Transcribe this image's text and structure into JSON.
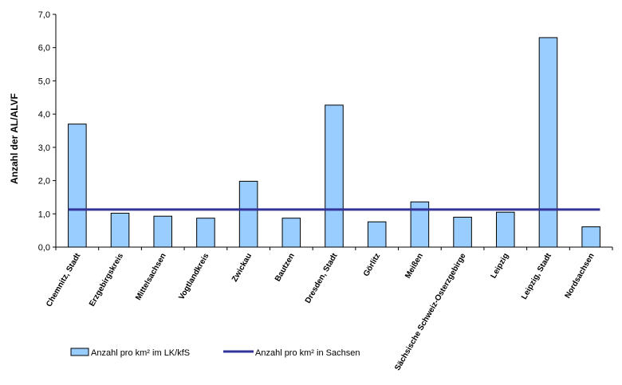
{
  "chart_data": {
    "type": "bar",
    "ylabel": "Anzahl der AL/ALVF",
    "ylim": [
      0,
      7
    ],
    "yticks": [
      "0,0",
      "1,0",
      "2,0",
      "3,0",
      "4,0",
      "5,0",
      "6,0",
      "7,0"
    ],
    "grid": false,
    "legend_position": "bottom",
    "categories": [
      "Chemnitz, Stadt",
      "Erzgebirgskreis",
      "Mittelsachsen",
      "Vogtlandkreis",
      "Zwickau",
      "Bautzen",
      "Dresden, Stadt",
      "Görlitz",
      "Meißen",
      "Sächsische Schweiz-Osterzgebirge",
      "Leipzig",
      "Leipzig, Stadt",
      "Nordsachsen"
    ],
    "series": [
      {
        "name": "Anzahl pro km² im LK/kfS",
        "type": "bar",
        "color": "#99ccff",
        "values": [
          3.7,
          1.02,
          0.93,
          0.87,
          1.98,
          0.87,
          4.27,
          0.76,
          1.36,
          0.9,
          1.05,
          6.3,
          0.61
        ]
      },
      {
        "name": "Anzahl pro km² in Sachsen",
        "type": "line",
        "color": "#333399",
        "value": 1.13
      }
    ]
  }
}
